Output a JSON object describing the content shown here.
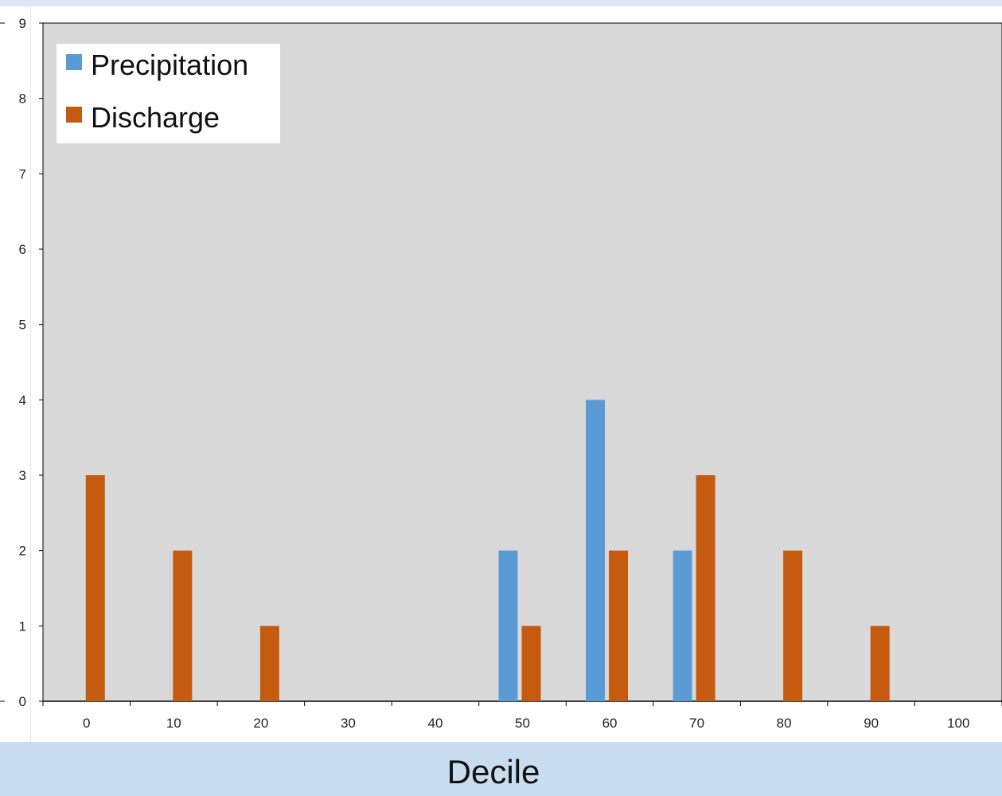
{
  "chart_data": {
    "type": "bar",
    "xlabel": "Decile",
    "ylabel": "",
    "title": "",
    "ylim": [
      0,
      9
    ],
    "yticks": [
      "0",
      "1",
      "2",
      "3",
      "4",
      "5",
      "6",
      "7",
      "8",
      "9"
    ],
    "xticks": [
      "0",
      "10",
      "20",
      "30",
      "40",
      "50",
      "60",
      "70",
      "80",
      "90",
      "100"
    ],
    "categories": [
      "0",
      "10",
      "20",
      "30",
      "40",
      "50",
      "60",
      "70",
      "80",
      "90",
      "100"
    ],
    "series": [
      {
        "name": "Precipitation",
        "color": "#5b9bd5",
        "values": [
          0,
          0,
          0,
          0,
          0,
          2,
          4,
          2,
          0,
          0,
          0
        ]
      },
      {
        "name": "Discharge",
        "color": "#c55a11",
        "values": [
          3,
          2,
          1,
          0,
          0,
          1,
          2,
          3,
          2,
          1,
          0
        ]
      }
    ],
    "plot_background": "#d9d9d9",
    "legend_position": "top-left",
    "grid": false
  }
}
